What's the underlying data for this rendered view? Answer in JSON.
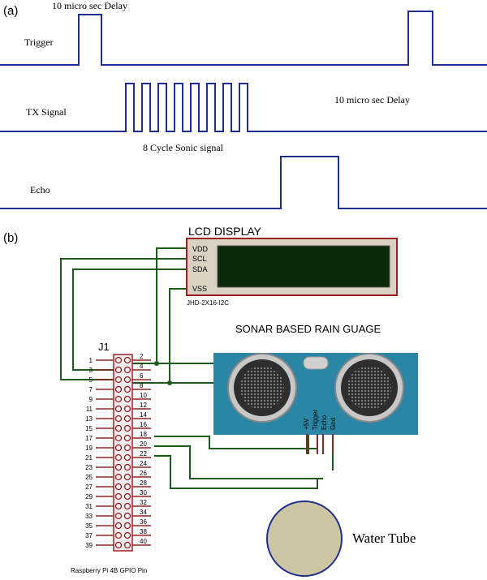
{
  "panel_a": {
    "label": "(a)",
    "trigger_label": "Trigger",
    "trigger_delay_label": "10 micro sec Delay",
    "tx_label": "TX Signal",
    "tx_delay_label": "10 micro sec Delay",
    "sonic_label": "8 Cycle Sonic signal",
    "echo_label": "Echo",
    "pulse_cycles": 8
  },
  "panel_b": {
    "label": "(b)",
    "lcd": {
      "title": "LCD DISPLAY",
      "pins": [
        "VDD",
        "SCL",
        "SDA",
        "VSS"
      ],
      "part": "JHD-2X16-I2C"
    },
    "sensor": {
      "title": "SONAR BASED RAIN GUAGE",
      "pins": [
        "+5V",
        "Trigger",
        "Echo",
        "Gnd"
      ]
    },
    "header": {
      "name": "J1",
      "caption": "Raspberry Pi 4B GPIO Pin",
      "left_pins": [
        "1",
        "3",
        "5",
        "7",
        "9",
        "11",
        "13",
        "15",
        "17",
        "19",
        "21",
        "23",
        "25",
        "27",
        "29",
        "31",
        "33",
        "35",
        "37",
        "39"
      ],
      "right_pins": [
        "2",
        "4",
        "6",
        "8",
        "10",
        "12",
        "14",
        "16",
        "18",
        "20",
        "22",
        "24",
        "26",
        "28",
        "30",
        "32",
        "34",
        "36",
        "38",
        "40"
      ]
    },
    "tube_label": "Water Tube"
  },
  "colors": {
    "signal": "#1f2f8f",
    "wire": "#1f5a1a",
    "pin_red": "#9c2020",
    "lcd_body": "#d9d2c2",
    "lcd_screen": "#0a2a0a",
    "sensor_blue": "#2a86a4",
    "tube_fill": "#ccc6a4"
  }
}
